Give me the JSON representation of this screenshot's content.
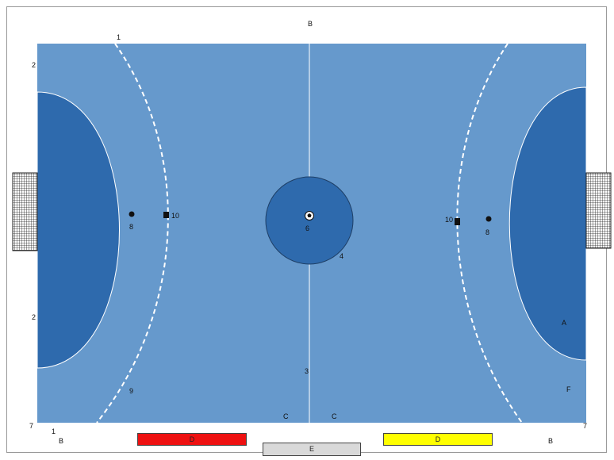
{
  "labels": {
    "top_b": "B",
    "line_1_top": "1",
    "line_1_bottom": "1",
    "line_2_upper": "2",
    "line_2_lower": "2",
    "line_3": "3",
    "line_4": "4",
    "center_6": "6",
    "left_8": "8",
    "right_8": "8",
    "left_10": "10",
    "right_10": "10",
    "line_9": "9",
    "corner_7_left": "7",
    "corner_7_right": "7",
    "zone_a": "A",
    "zone_f": "F",
    "c_left": "C",
    "c_right": "C",
    "bottom_b_left": "B",
    "bottom_b_right": "B"
  },
  "bars": {
    "red_label": "D",
    "gray_label": "E",
    "yellow_label": "D"
  },
  "colors": {
    "court": "#6699cc",
    "goal_area": "#2e6aad",
    "red_bar": "#ee1111",
    "yellow_bar": "#ffff00",
    "gray_bar": "#d9d9d9",
    "line": "#ffffff"
  }
}
